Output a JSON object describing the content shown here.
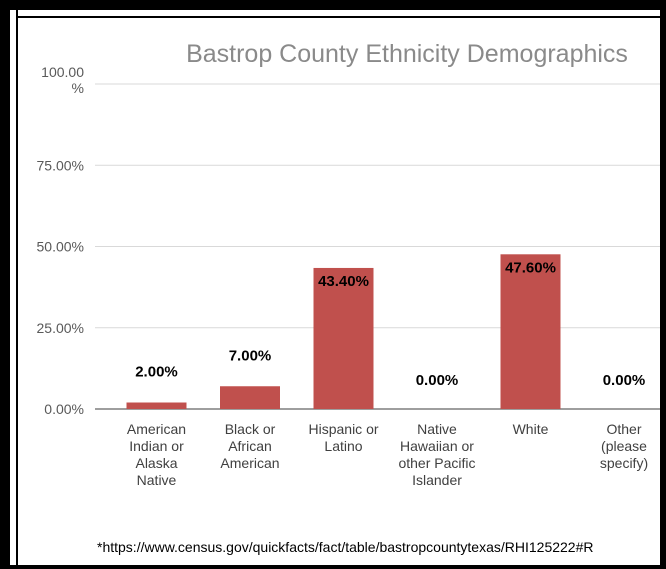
{
  "chart_data": {
    "type": "bar",
    "title": "Bastrop County Ethnicity Demographics",
    "categories": [
      [
        "American",
        "Indian or",
        "Alaska",
        "Native"
      ],
      [
        "Black or",
        "African",
        "American"
      ],
      [
        "Hispanic or",
        "Latino"
      ],
      [
        "Native",
        "Hawaiian or",
        "other Pacific",
        "Islander"
      ],
      [
        "White"
      ],
      [
        "Other",
        "(please",
        "specify)"
      ]
    ],
    "values": [
      2.0,
      7.0,
      43.4,
      0.0,
      47.6,
      0.0
    ],
    "data_labels": [
      "2.00%",
      "7.00%",
      "43.40%",
      "0.00%",
      "47.60%",
      "0.00%"
    ],
    "y_ticks": [
      {
        "value": 0,
        "label": "0.00%"
      },
      {
        "value": 25,
        "label": "25.00%"
      },
      {
        "value": 50,
        "label": "50.00%"
      },
      {
        "value": 75,
        "label": "75.00%"
      },
      {
        "value": 100,
        "label": "100.00%"
      }
    ],
    "ylim": [
      0,
      100
    ],
    "grid": true,
    "bar_color": "#c0504d",
    "footnote": "*https://www.census.gov/quickfacts/fact/table/bastropcountytexas/RHI125222#R"
  }
}
